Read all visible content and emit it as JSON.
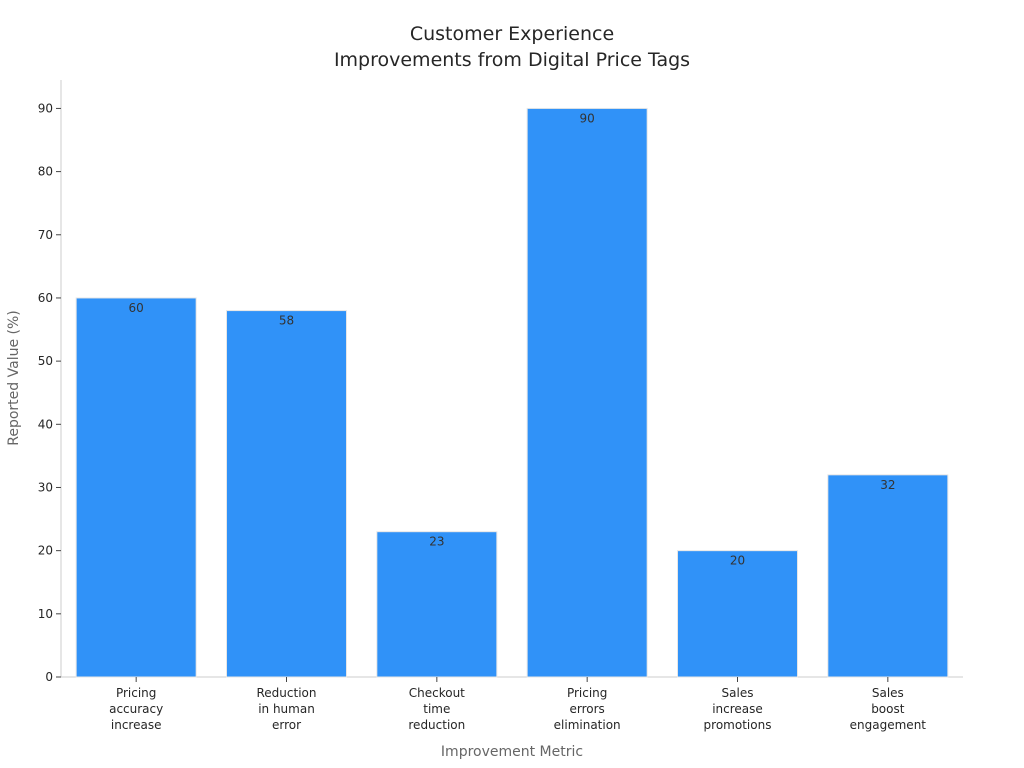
{
  "chart_data": {
    "type": "bar",
    "title_lines": [
      "Customer Experience",
      "Improvements from Digital Price Tags"
    ],
    "xlabel": "Improvement Metric",
    "ylabel": "Reported Value (%)",
    "categories": [
      [
        "Pricing",
        "accuracy",
        "increase"
      ],
      [
        "Reduction",
        "in human",
        "error"
      ],
      [
        "Checkout",
        "time",
        "reduction"
      ],
      [
        "Pricing",
        "errors",
        "elimination"
      ],
      [
        "Sales",
        "increase",
        "promotions"
      ],
      [
        "Sales",
        "boost",
        "engagement"
      ]
    ],
    "values": [
      60,
      58,
      23,
      90,
      20,
      32
    ],
    "ylim": [
      0,
      94.5
    ],
    "yticks": [
      0,
      10,
      20,
      30,
      40,
      50,
      60,
      70,
      80,
      90
    ],
    "grid": false,
    "bar_color": "#3092f8"
  }
}
